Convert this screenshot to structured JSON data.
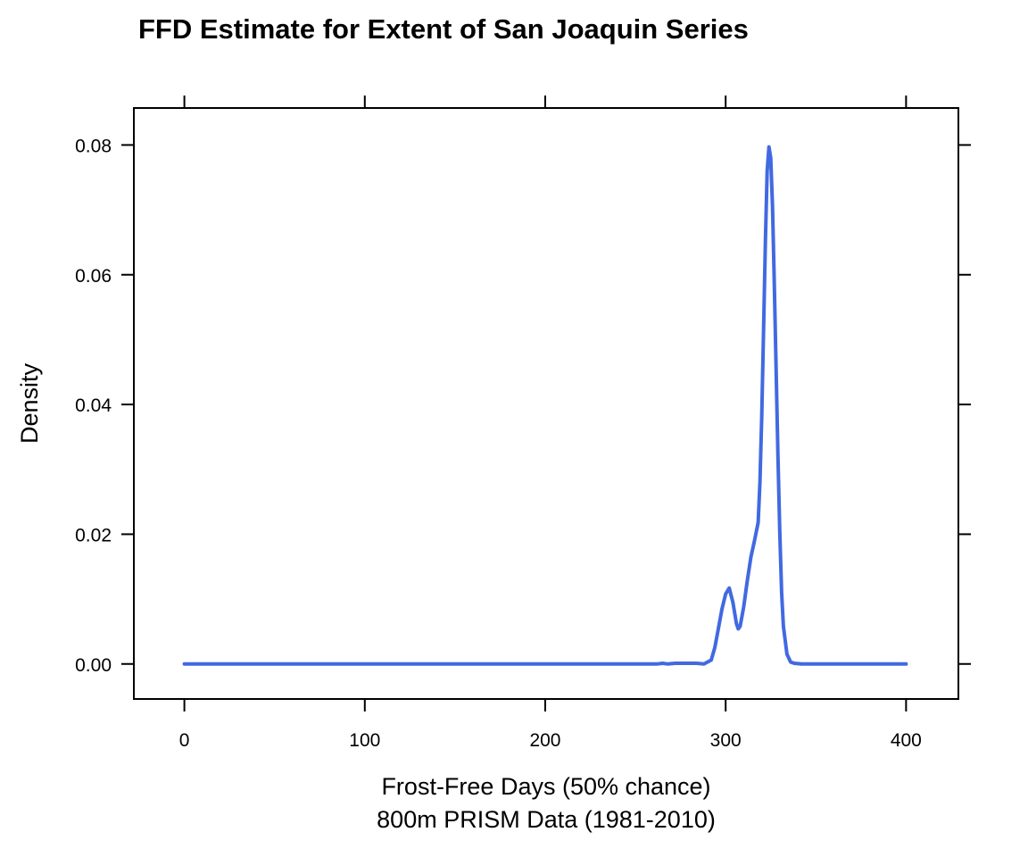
{
  "chart_data": {
    "type": "line",
    "title": "FFD Estimate for Extent of San Joaquin Series",
    "xlabel": "Frost-Free Days (50% chance)",
    "xlabel_line2": "800m PRISM Data (1981-2010)",
    "ylabel": "Density",
    "xlim": [
      -28,
      429
    ],
    "ylim": [
      -0.0054,
      0.0857
    ],
    "x_ticks": [
      0,
      100,
      200,
      300,
      400
    ],
    "x_tick_labels": [
      "0",
      "100",
      "200",
      "300",
      "400"
    ],
    "y_ticks": [
      0,
      0.02,
      0.04,
      0.06,
      0.08
    ],
    "y_tick_labels": [
      "0.00",
      "0.02",
      "0.04",
      "0.06",
      "0.08"
    ],
    "grid": false,
    "line_color": "#4169E1",
    "series": [
      {
        "x": [
          0,
          50,
          100,
          150,
          200,
          250,
          262,
          265,
          268,
          272,
          276,
          280,
          284,
          288,
          292,
          294,
          296,
          298,
          300,
          302,
          304,
          306,
          307,
          308,
          310,
          312,
          314,
          316,
          318,
          319,
          320,
          321,
          322,
          323,
          324,
          325,
          326,
          327,
          328,
          329,
          330,
          331,
          332,
          334,
          336,
          338,
          342,
          350,
          375,
          400
        ],
        "y": [
          0,
          0,
          0,
          0,
          0,
          0,
          0,
          0.0001,
          0,
          0.0001,
          0.0001,
          0.0001,
          0.0001,
          0,
          0.0006,
          0.0025,
          0.0055,
          0.0085,
          0.0108,
          0.0117,
          0.0095,
          0.0062,
          0.0054,
          0.0058,
          0.0088,
          0.0128,
          0.0165,
          0.019,
          0.0218,
          0.028,
          0.038,
          0.051,
          0.065,
          0.076,
          0.0797,
          0.078,
          0.0705,
          0.058,
          0.045,
          0.032,
          0.0205,
          0.011,
          0.0058,
          0.0015,
          0.0003,
          0.0001,
          0,
          0,
          0,
          0
        ]
      }
    ]
  }
}
